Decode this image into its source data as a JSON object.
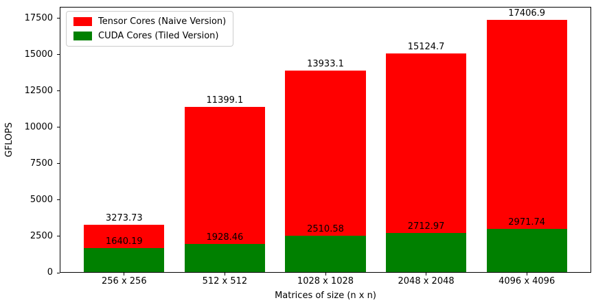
{
  "chart_data": {
    "type": "bar",
    "variant": "overlaid-from-zero",
    "categories": [
      "256 x 256",
      "512 x 512",
      "1028 x 1028",
      "2048 x 2048",
      "4096 x 4096"
    ],
    "series": [
      {
        "name": "Tensor Cores (Naive Version)",
        "color": "#ff0000",
        "values": [
          3273.73,
          11399.1,
          13933.1,
          15124.7,
          17406.9
        ],
        "labels": [
          "3273.73",
          "11399.1",
          "13933.1",
          "15124.7",
          "17406.9"
        ]
      },
      {
        "name": "CUDA Cores (Tiled Version)",
        "color": "#008000",
        "values": [
          1640.19,
          1928.46,
          2510.58,
          2712.97,
          2971.74
        ],
        "labels": [
          "1640.19",
          "1928.46",
          "2510.58",
          "2712.97",
          "2971.74"
        ]
      }
    ],
    "title": "",
    "xlabel": "Matrices of size (n x n)",
    "ylabel": "GFLOPS",
    "ylim": [
      0,
      18280
    ],
    "yticks": [
      "0",
      "2500",
      "5000",
      "7500",
      "10000",
      "12500",
      "15000",
      "17500"
    ],
    "grid": false,
    "legend_position": "upper left"
  }
}
